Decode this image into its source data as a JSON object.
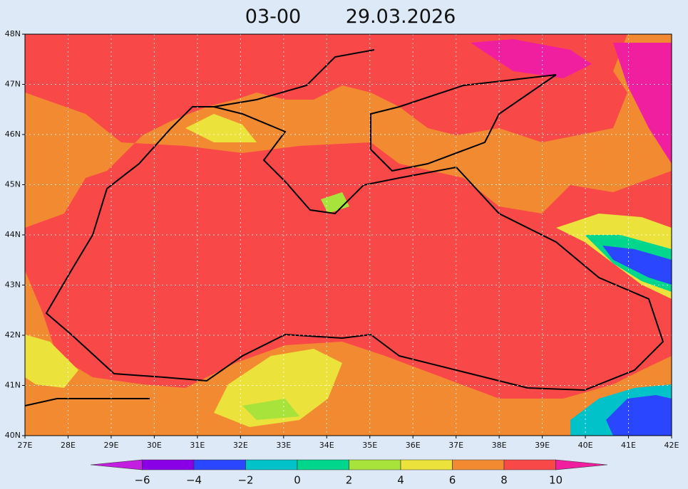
{
  "header": {
    "time": "03-00",
    "date": "29.03.2026"
  },
  "map": {
    "lat_labels": [
      "48N",
      "47N",
      "46N",
      "45N",
      "44N",
      "43N",
      "42N",
      "41N",
      "40N"
    ],
    "lon_labels": [
      "27E",
      "28E",
      "29E",
      "30E",
      "31E",
      "32E",
      "33E",
      "34E",
      "35E",
      "36E",
      "37E",
      "38E",
      "39E",
      "40E",
      "41E",
      "42E"
    ]
  },
  "colorbar": {
    "labels": [
      "−6",
      "−4",
      "−2",
      "0",
      "2",
      "4",
      "6",
      "8",
      "10"
    ],
    "colors": [
      "#c21fe0",
      "#8a00e6",
      "#2a46ff",
      "#00c2c8",
      "#00d68c",
      "#a8e33c",
      "#ebe23c",
      "#f28a32",
      "#f84848",
      "#f01fa0"
    ]
  }
}
